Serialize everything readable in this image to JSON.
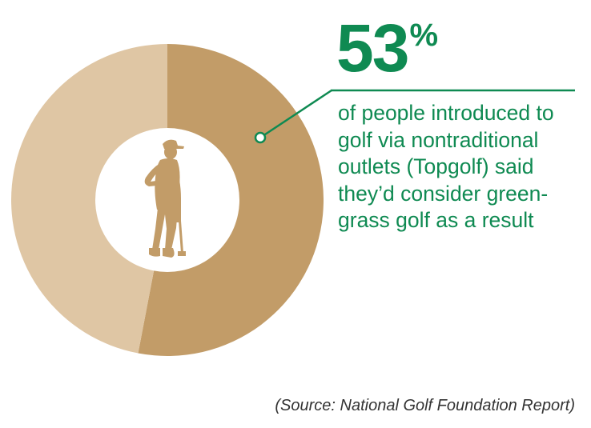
{
  "colors": {
    "accent": "#0f8a52",
    "slice_primary": "#c29c68",
    "slice_secondary": "#dfc6a4",
    "silhouette": "#c29c68",
    "source_text": "#333333"
  },
  "icons": {
    "center": "golfer-silhouette-icon"
  },
  "headline": {
    "value": "53",
    "unit": "%"
  },
  "description": {
    "lines": [
      "of people introduced to",
      "golf via nontraditional",
      "outlets (Topgolf) said",
      "they’d consider green-",
      "grass golf as a result"
    ]
  },
  "source": "(Source: National Golf Foundation Report)",
  "chart_data": {
    "type": "pie",
    "donut": true,
    "categories": [
      "",
      ""
    ],
    "values": [
      53,
      47
    ],
    "title": "",
    "legend": "none"
  }
}
